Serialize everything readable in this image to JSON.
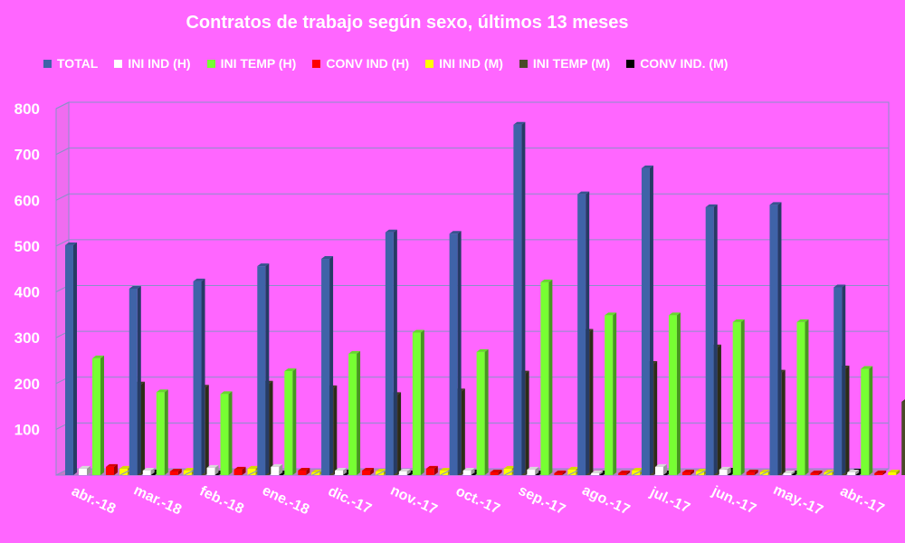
{
  "chart_data": {
    "type": "bar",
    "title": "Contratos de trabajo según sexo, últimos 13 meses",
    "categories": [
      "abr.-18",
      "mar.-18",
      "feb.-18",
      "ene.-18",
      "dic.-17",
      "nov.-17",
      "oct.-17",
      "sep.-17",
      "ago.-17",
      "jul.-17",
      "jun.-17",
      "may.-17",
      "abr.-17"
    ],
    "series": [
      {
        "name": "TOTAL",
        "color": "#3f63a8",
        "values": [
          502,
          407,
          423,
          456,
          472,
          530,
          527,
          765,
          613,
          670,
          585,
          590,
          410
        ]
      },
      {
        "name": "INI IND (H)",
        "color": "#ffffff",
        "values": [
          14,
          10,
          16,
          18,
          10,
          8,
          10,
          12,
          4,
          18,
          12,
          4,
          6
        ]
      },
      {
        "name": "INI TEMP (H)",
        "color": "#77ff33",
        "values": [
          255,
          181,
          177,
          227,
          265,
          311,
          269,
          421,
          349,
          349,
          334,
          334,
          232
        ]
      },
      {
        "name": "CONV IND (H)",
        "color": "#ff0000",
        "values": [
          18,
          8,
          12,
          10,
          10,
          14,
          6,
          4,
          4,
          6,
          6,
          4,
          4
        ]
      },
      {
        "name": "INI IND (M)",
        "color": "#ffff00",
        "values": [
          14,
          10,
          14,
          6,
          8,
          10,
          14,
          12,
          10,
          8,
          6,
          6,
          6
        ]
      },
      {
        "name": "INI TEMP  (M)",
        "color": "#4a4a28",
        "values": [
          198,
          191,
          200,
          190,
          175,
          183,
          222,
          313,
          243,
          279,
          224,
          233,
          160
        ]
      },
      {
        "name": "CONV IND.  (M)",
        "color": "#000000",
        "values": [
          6,
          4,
          4,
          6,
          4,
          6,
          2,
          4,
          2,
          10,
          4,
          8,
          2
        ]
      }
    ],
    "ylim": [
      0,
      800
    ],
    "yticks": [
      100,
      200,
      300,
      400,
      500,
      600,
      700,
      800
    ],
    "grid": true,
    "legend_position": "top"
  }
}
